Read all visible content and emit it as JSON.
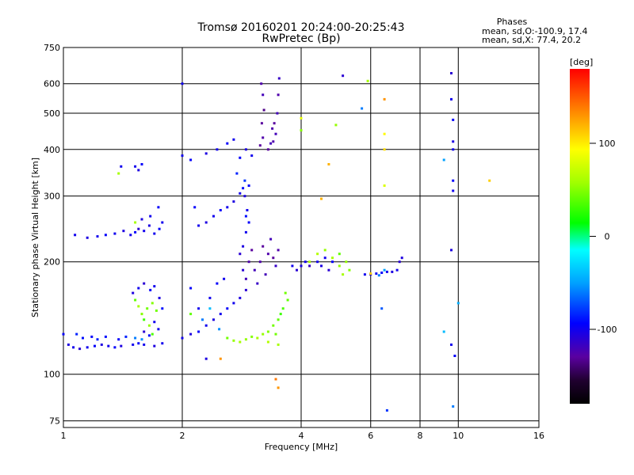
{
  "chart_data": {
    "type": "scatter",
    "title": "Tromsø 20160201 20:24:00-20:25:43",
    "subtitle": "RwPretec (Bp)",
    "xlabel": "Frequency [MHz]",
    "ylabel": "Stationary phase Virtual Height [km]",
    "x_scale": "log",
    "y_scale": "log",
    "xlim": [
      1,
      16
    ],
    "ylim": [
      72,
      750
    ],
    "x_ticks": [
      1,
      2,
      4,
      6,
      8,
      10,
      16
    ],
    "x_tick_labels": [
      "1",
      "2",
      "4",
      "6",
      "8",
      "10",
      "16"
    ],
    "y_ticks": [
      75,
      100,
      200,
      300,
      400,
      500,
      600,
      750
    ],
    "y_tick_labels": [
      "75",
      "100",
      "200",
      "300",
      "400",
      "500",
      "600",
      "750"
    ],
    "grid": true,
    "info": {
      "heading": "Phases",
      "line1": "mean, sd,O:-100.9, 17.4",
      "line2": "mean, sd,X:  77.4, 20.2"
    },
    "colorbar": {
      "label": "[deg]",
      "range": [
        -180,
        180
      ],
      "ticks": [
        100,
        0,
        -100
      ],
      "tick_labels": [
        "100",
        "0",
        "-100"
      ]
    },
    "series": [
      {
        "name": "",
        "points": [
          [
            1.0,
            128,
            -95
          ],
          [
            1.03,
            120,
            -105
          ],
          [
            1.06,
            118,
            -100
          ],
          [
            1.1,
            117,
            -110
          ],
          [
            1.15,
            118,
            -100
          ],
          [
            1.2,
            119,
            -95
          ],
          [
            1.25,
            120,
            -105
          ],
          [
            1.3,
            119,
            -100
          ],
          [
            1.35,
            118,
            -95
          ],
          [
            1.4,
            119,
            -105
          ],
          [
            1.5,
            120,
            -100
          ],
          [
            1.55,
            121,
            -95
          ],
          [
            1.6,
            120,
            -100
          ],
          [
            1.7,
            119,
            -105
          ],
          [
            1.78,
            121,
            -100
          ],
          [
            1.08,
            128,
            -85
          ],
          [
            1.12,
            125,
            -90
          ],
          [
            1.18,
            126,
            -95
          ],
          [
            1.22,
            124,
            -85
          ],
          [
            1.28,
            126,
            -90
          ],
          [
            1.38,
            124,
            -95
          ],
          [
            1.44,
            126,
            -85
          ],
          [
            1.52,
            125,
            -60
          ],
          [
            1.58,
            124,
            -55
          ],
          [
            1.65,
            127,
            -90
          ],
          [
            1.5,
            165,
            -105
          ],
          [
            1.52,
            158,
            40
          ],
          [
            1.55,
            152,
            60
          ],
          [
            1.58,
            145,
            50
          ],
          [
            1.6,
            140,
            30
          ],
          [
            1.63,
            150,
            45
          ],
          [
            1.65,
            135,
            55
          ],
          [
            1.68,
            155,
            50
          ],
          [
            1.7,
            138,
            -100
          ],
          [
            1.72,
            148,
            45
          ],
          [
            1.55,
            170,
            -100
          ],
          [
            1.6,
            175,
            -110
          ],
          [
            1.66,
            168,
            -95
          ],
          [
            1.7,
            172,
            -100
          ],
          [
            1.75,
            160,
            -105
          ],
          [
            1.78,
            150,
            -90
          ],
          [
            1.6,
            130,
            -110
          ],
          [
            1.68,
            128,
            35
          ],
          [
            1.74,
            132,
            -100
          ],
          [
            1.07,
            236,
            -100
          ],
          [
            1.15,
            232,
            -105
          ],
          [
            1.22,
            234,
            -100
          ],
          [
            1.28,
            236,
            -95
          ],
          [
            1.35,
            238,
            -100
          ],
          [
            1.42,
            242,
            -105
          ],
          [
            1.48,
            236,
            -100
          ],
          [
            1.52,
            240,
            -95
          ],
          [
            1.55,
            245,
            -110
          ],
          [
            1.6,
            242,
            -100
          ],
          [
            1.65,
            250,
            -105
          ],
          [
            1.7,
            238,
            -100
          ],
          [
            1.75,
            245,
            -95
          ],
          [
            1.78,
            255,
            -100
          ],
          [
            1.58,
            260,
            -105
          ],
          [
            1.66,
            265,
            -100
          ],
          [
            1.74,
            280,
            -95
          ],
          [
            1.52,
            255,
            60
          ],
          [
            1.4,
            360,
            -100
          ],
          [
            1.52,
            360,
            -100
          ],
          [
            1.55,
            352,
            -105
          ],
          [
            1.58,
            365,
            -95
          ],
          [
            1.38,
            345,
            60
          ],
          [
            2.0,
            125,
            -100
          ],
          [
            2.1,
            128,
            -105
          ],
          [
            2.2,
            130,
            -95
          ],
          [
            2.3,
            135,
            -100
          ],
          [
            2.4,
            140,
            -105
          ],
          [
            2.5,
            145,
            -100
          ],
          [
            2.6,
            150,
            -95
          ],
          [
            2.7,
            155,
            -100
          ],
          [
            2.8,
            160,
            -105
          ],
          [
            2.9,
            168,
            -110
          ],
          [
            2.35,
            160,
            -100
          ],
          [
            2.45,
            175,
            -95
          ],
          [
            2.55,
            180,
            -100
          ],
          [
            2.3,
            110,
            -105
          ],
          [
            2.2,
            150,
            -100
          ],
          [
            2.1,
            170,
            -95
          ],
          [
            2.1,
            145,
            40
          ],
          [
            2.25,
            140,
            -60
          ],
          [
            2.35,
            150,
            -40
          ],
          [
            2.48,
            132,
            -55
          ],
          [
            2.6,
            125,
            45
          ],
          [
            2.7,
            123,
            55
          ],
          [
            2.8,
            122,
            60
          ],
          [
            2.9,
            124,
            55
          ],
          [
            3.0,
            126,
            50
          ],
          [
            3.1,
            125,
            60
          ],
          [
            3.2,
            128,
            55
          ],
          [
            3.3,
            130,
            50
          ],
          [
            3.4,
            135,
            45
          ],
          [
            3.5,
            140,
            40
          ],
          [
            3.6,
            150,
            35
          ],
          [
            3.7,
            158,
            40
          ],
          [
            3.3,
            122,
            65
          ],
          [
            3.45,
            128,
            45
          ],
          [
            3.55,
            145,
            30
          ],
          [
            3.65,
            165,
            45
          ],
          [
            2.8,
            210,
            -110
          ],
          [
            2.85,
            220,
            -105
          ],
          [
            2.9,
            240,
            -100
          ],
          [
            2.95,
            255,
            -95
          ],
          [
            2.92,
            275,
            -100
          ],
          [
            2.88,
            300,
            -105
          ],
          [
            2.95,
            320,
            -95
          ],
          [
            2.85,
            190,
            -110
          ],
          [
            2.9,
            180,
            -120
          ],
          [
            2.95,
            200,
            -125
          ],
          [
            3.0,
            215,
            -130
          ],
          [
            3.05,
            190,
            -120
          ],
          [
            3.1,
            175,
            -115
          ],
          [
            3.15,
            200,
            -125
          ],
          [
            3.2,
            220,
            -130
          ],
          [
            3.25,
            185,
            -120
          ],
          [
            3.3,
            210,
            -125
          ],
          [
            3.35,
            230,
            -120
          ],
          [
            3.4,
            205,
            -130
          ],
          [
            3.45,
            195,
            -115
          ],
          [
            3.5,
            215,
            -125
          ],
          [
            2.2,
            250,
            -100
          ],
          [
            2.3,
            255,
            -105
          ],
          [
            2.4,
            265,
            -100
          ],
          [
            2.5,
            275,
            -95
          ],
          [
            2.6,
            280,
            -100
          ],
          [
            2.7,
            290,
            -105
          ],
          [
            2.15,
            280,
            -95
          ],
          [
            2.8,
            305,
            -100
          ],
          [
            2.85,
            315,
            -90
          ],
          [
            2.88,
            330,
            -80
          ],
          [
            2.75,
            345,
            -85
          ],
          [
            2.9,
            265,
            -90
          ],
          [
            3.15,
            410,
            -130
          ],
          [
            3.2,
            430,
            -125
          ],
          [
            3.18,
            470,
            -130
          ],
          [
            3.22,
            510,
            -135
          ],
          [
            3.2,
            560,
            -120
          ],
          [
            3.17,
            600,
            -125
          ],
          [
            3.4,
            420,
            -125
          ],
          [
            3.45,
            440,
            -120
          ],
          [
            3.42,
            470,
            -130
          ],
          [
            3.48,
            500,
            -120
          ],
          [
            3.5,
            560,
            -125
          ],
          [
            3.52,
            620,
            -115
          ],
          [
            3.3,
            400,
            -130
          ],
          [
            3.35,
            415,
            -120
          ],
          [
            3.38,
            455,
            -125
          ],
          [
            2.0,
            385,
            -100
          ],
          [
            2.1,
            375,
            -95
          ],
          [
            2.3,
            390,
            -105
          ],
          [
            2.45,
            400,
            -100
          ],
          [
            2.6,
            415,
            -95
          ],
          [
            2.7,
            425,
            -100
          ],
          [
            2.9,
            400,
            -105
          ],
          [
            3.0,
            385,
            -100
          ],
          [
            2.8,
            380,
            -95
          ],
          [
            3.8,
            195,
            -100
          ],
          [
            3.9,
            190,
            -110
          ],
          [
            4.0,
            195,
            -105
          ],
          [
            4.1,
            200,
            -100
          ],
          [
            4.2,
            195,
            -115
          ],
          [
            4.4,
            200,
            -100
          ],
          [
            4.5,
            195,
            -105
          ],
          [
            4.6,
            205,
            -100
          ],
          [
            4.7,
            190,
            -110
          ],
          [
            4.8,
            200,
            -95
          ],
          [
            4.2,
            200,
            60
          ],
          [
            4.4,
            210,
            65
          ],
          [
            4.6,
            215,
            55
          ],
          [
            4.8,
            205,
            60
          ],
          [
            5.0,
            195,
            55
          ],
          [
            5.1,
            185,
            60
          ],
          [
            5.2,
            200,
            55
          ],
          [
            5.3,
            190,
            50
          ],
          [
            5.0,
            210,
            40
          ],
          [
            5.8,
            185,
            -100
          ],
          [
            6.0,
            185,
            -105
          ],
          [
            6.2,
            186,
            -100
          ],
          [
            6.4,
            187,
            -95
          ],
          [
            6.6,
            188,
            -100
          ],
          [
            6.8,
            188,
            -105
          ],
          [
            7.0,
            190,
            -100
          ],
          [
            7.1,
            200,
            -110
          ],
          [
            7.2,
            205,
            -105
          ],
          [
            6.0,
            186,
            110
          ],
          [
            6.3,
            184,
            -60
          ],
          [
            6.5,
            190,
            -50
          ],
          [
            9.6,
            640,
            -110
          ],
          [
            9.6,
            545,
            -100
          ],
          [
            9.7,
            480,
            -95
          ],
          [
            9.7,
            420,
            -105
          ],
          [
            9.7,
            400,
            -100
          ],
          [
            9.7,
            330,
            -95
          ],
          [
            9.7,
            310,
            -100
          ],
          [
            9.6,
            215,
            -105
          ],
          [
            9.6,
            120,
            -100
          ],
          [
            9.8,
            112,
            -95
          ],
          [
            9.7,
            82,
            -60
          ],
          [
            9.2,
            130,
            -40
          ],
          [
            9.2,
            375,
            -50
          ],
          [
            10.0,
            155,
            -45
          ],
          [
            12.0,
            330,
            110
          ],
          [
            5.1,
            630,
            -110
          ],
          [
            5.9,
            610,
            60
          ],
          [
            4.0,
            485,
            85
          ],
          [
            4.0,
            450,
            50
          ],
          [
            4.9,
            465,
            55
          ],
          [
            4.7,
            365,
            120
          ],
          [
            5.7,
            515,
            -60
          ],
          [
            6.5,
            545,
            130
          ],
          [
            6.5,
            440,
            95
          ],
          [
            6.5,
            400,
            105
          ],
          [
            6.5,
            320,
            80
          ],
          [
            6.6,
            80,
            -80
          ],
          [
            3.5,
            120,
            60
          ],
          [
            3.5,
            92,
            130
          ],
          [
            6.4,
            150,
            -70
          ],
          [
            4.5,
            295,
            120
          ],
          [
            3.45,
            97,
            140
          ],
          [
            2.0,
            600,
            -100
          ],
          [
            2.5,
            110,
            130
          ]
        ]
      }
    ]
  }
}
